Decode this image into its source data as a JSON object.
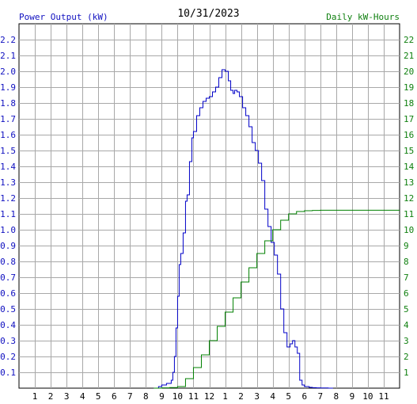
{
  "chart_data": {
    "type": "line",
    "title": "10/31/2023",
    "ylabel_left": "Power Output (kW)",
    "ylabel_right": "Daily kW-Hours",
    "xlim": [
      0,
      24
    ],
    "ylim_left": [
      0,
      2.3
    ],
    "ylim_right": [
      0,
      23
    ],
    "grid": true,
    "x_ticks": [
      {
        "x": 1,
        "label": "1"
      },
      {
        "x": 2,
        "label": "2"
      },
      {
        "x": 3,
        "label": "3"
      },
      {
        "x": 4,
        "label": "4"
      },
      {
        "x": 5,
        "label": "5"
      },
      {
        "x": 6,
        "label": "6"
      },
      {
        "x": 7,
        "label": "7"
      },
      {
        "x": 8,
        "label": "8"
      },
      {
        "x": 9,
        "label": "9"
      },
      {
        "x": 10,
        "label": "10"
      },
      {
        "x": 11,
        "label": "11"
      },
      {
        "x": 12,
        "label": "12"
      },
      {
        "x": 13,
        "label": "1"
      },
      {
        "x": 14,
        "label": "2"
      },
      {
        "x": 15,
        "label": "3"
      },
      {
        "x": 16,
        "label": "4"
      },
      {
        "x": 17,
        "label": "5"
      },
      {
        "x": 18,
        "label": "6"
      },
      {
        "x": 19,
        "label": "7"
      },
      {
        "x": 20,
        "label": "8"
      },
      {
        "x": 21,
        "label": "9"
      },
      {
        "x": 22,
        "label": "10"
      },
      {
        "x": 23,
        "label": "11"
      }
    ],
    "y_ticks_left": [
      "0.1",
      "0.2",
      "0.3",
      "0.4",
      "0.5",
      "0.6",
      "0.7",
      "0.8",
      "0.9",
      "1.0",
      "1.1",
      "1.2",
      "1.3",
      "1.4",
      "1.5",
      "1.6",
      "1.7",
      "1.8",
      "1.9",
      "2.0",
      "2.1",
      "2.2"
    ],
    "y_ticks_right": [
      "1",
      "2",
      "3",
      "4",
      "5",
      "6",
      "7",
      "8",
      "9",
      "10",
      "11",
      "12",
      "13",
      "14",
      "15",
      "16",
      "17",
      "18",
      "19",
      "20",
      "21",
      "22"
    ],
    "series": [
      {
        "name": "Power Output (kW)",
        "axis": "left",
        "color": "#0000c8",
        "x": [
          8.5,
          8.8,
          9.0,
          9.3,
          9.6,
          9.7,
          9.8,
          9.9,
          10.0,
          10.1,
          10.2,
          10.35,
          10.5,
          10.6,
          10.75,
          10.9,
          11.0,
          11.2,
          11.4,
          11.6,
          11.8,
          12.0,
          12.2,
          12.4,
          12.6,
          12.8,
          13.0,
          13.2,
          13.35,
          13.5,
          13.6,
          13.75,
          13.9,
          14.1,
          14.3,
          14.5,
          14.7,
          14.9,
          15.1,
          15.3,
          15.5,
          15.7,
          15.9,
          16.1,
          16.3,
          16.5,
          16.7,
          16.9,
          17.1,
          17.25,
          17.4,
          17.55,
          17.7,
          17.85,
          18.0,
          18.2,
          18.3,
          18.5,
          18.75,
          19.0,
          19.5,
          19.8
        ],
        "y": [
          0.0,
          0.01,
          0.02,
          0.03,
          0.05,
          0.1,
          0.2,
          0.38,
          0.58,
          0.78,
          0.85,
          0.98,
          1.18,
          1.22,
          1.43,
          1.58,
          1.62,
          1.72,
          1.77,
          1.81,
          1.83,
          1.84,
          1.87,
          1.9,
          1.96,
          2.01,
          2.0,
          1.94,
          1.88,
          1.86,
          1.88,
          1.87,
          1.84,
          1.77,
          1.72,
          1.65,
          1.55,
          1.5,
          1.42,
          1.31,
          1.13,
          1.02,
          0.92,
          0.84,
          0.72,
          0.5,
          0.35,
          0.26,
          0.28,
          0.3,
          0.26,
          0.22,
          0.05,
          0.02,
          0.01,
          0.01,
          0.005,
          0.003,
          0.002,
          0.001,
          0.0,
          0.0
        ],
        "step": true
      },
      {
        "name": "Daily kW-Hours",
        "axis": "right",
        "color": "#008000",
        "x": [
          8.5,
          9.0,
          9.5,
          10.0,
          10.5,
          11.0,
          11.5,
          12.0,
          12.5,
          13.0,
          13.5,
          14.0,
          14.5,
          15.0,
          15.5,
          16.0,
          16.5,
          17.0,
          17.5,
          18.0,
          18.5,
          19.0,
          20.0,
          22.0,
          24.0
        ],
        "y": [
          0.0,
          0.02,
          0.04,
          0.1,
          0.6,
          1.3,
          2.1,
          3.0,
          3.9,
          4.8,
          5.7,
          6.7,
          7.6,
          8.5,
          9.3,
          10.0,
          10.6,
          11.0,
          11.15,
          11.2,
          11.22,
          11.23,
          11.23,
          11.23,
          11.23
        ],
        "step": true
      }
    ]
  }
}
